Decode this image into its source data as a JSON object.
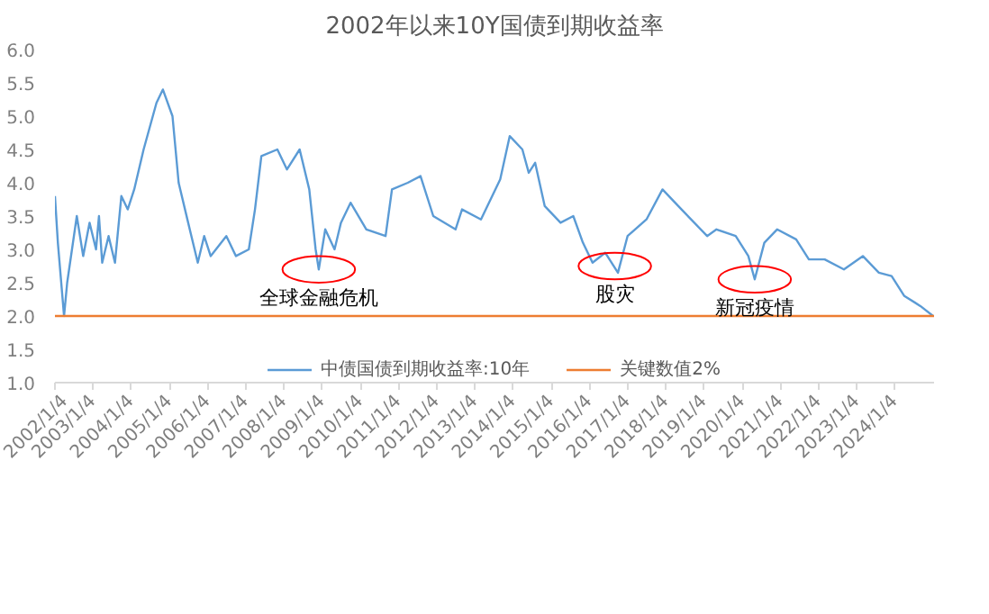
{
  "chart_data": {
    "type": "line",
    "title": "2002年以来10Y国债到期收益率",
    "xlim": [
      "2002-01-04",
      "2025-01-10"
    ],
    "xticks": [
      {
        "value": "2002-01-04",
        "label": "2002/1/4"
      },
      {
        "value": "2003-01-04",
        "label": "2003/1/4"
      },
      {
        "value": "2004-01-04",
        "label": "2004/1/4"
      },
      {
        "value": "2005-01-04",
        "label": "2005/1/4"
      },
      {
        "value": "2006-01-04",
        "label": "2006/1/4"
      },
      {
        "value": "2007-01-04",
        "label": "2007/1/4"
      },
      {
        "value": "2008-01-04",
        "label": "2008/1/4"
      },
      {
        "value": "2009-01-04",
        "label": "2009/1/4"
      },
      {
        "value": "2010-01-04",
        "label": "2010/1/4"
      },
      {
        "value": "2011-01-04",
        "label": "2011/1/4"
      },
      {
        "value": "2012-01-04",
        "label": "2012/1/4"
      },
      {
        "value": "2013-01-04",
        "label": "2013/1/4"
      },
      {
        "value": "2014-01-04",
        "label": "2014/1/4"
      },
      {
        "value": "2015-01-04",
        "label": "2015/1/4"
      },
      {
        "value": "2016-01-04",
        "label": "2016/1/4"
      },
      {
        "value": "2017-01-04",
        "label": "2017/1/4"
      },
      {
        "value": "2018-01-04",
        "label": "2018/1/4"
      },
      {
        "value": "2019-01-04",
        "label": "2019/1/4"
      },
      {
        "value": "2020-01-04",
        "label": "2020/1/4"
      },
      {
        "value": "2021-01-04",
        "label": "2021/1/4"
      },
      {
        "value": "2022-01-04",
        "label": "2022/1/4"
      },
      {
        "value": "2023-01-04",
        "label": "2023/1/4"
      },
      {
        "value": "2024-01-04",
        "label": "2024/1/4"
      }
    ],
    "ylim": [
      1,
      6
    ],
    "yticks": [
      {
        "value": 1,
        "label": "1.0"
      },
      {
        "value": 1.5,
        "label": "1.5"
      },
      {
        "value": 2,
        "label": "2.0"
      },
      {
        "value": 2.5,
        "label": "2.5"
      },
      {
        "value": 3,
        "label": "3.0"
      },
      {
        "value": 3.5,
        "label": "3.5"
      },
      {
        "value": 4,
        "label": "4.0"
      },
      {
        "value": 4.5,
        "label": "4.5"
      },
      {
        "value": 5,
        "label": "5.0"
      },
      {
        "value": 5.5,
        "label": "5.5"
      },
      {
        "value": 6,
        "label": "6.0"
      }
    ],
    "grid": false,
    "legend": "bottom",
    "marker": "none",
    "line_style": "solid",
    "series": [
      {
        "name": "中债国债到期收益率:10年",
        "color": "#5b9bd5",
        "x": [
          "2002-01-04",
          "2002-02",
          "2002-04",
          "2002-05",
          "2002-08",
          "2002-10",
          "2002-12",
          "2003-02",
          "2003-03",
          "2003-04",
          "2003-06",
          "2003-08",
          "2003-10",
          "2003-12",
          "2004-02",
          "2004-05",
          "2004-09",
          "2004-11",
          "2005-02",
          "2005-04",
          "2005-07",
          "2005-10",
          "2005-12",
          "2006-02",
          "2006-07",
          "2006-10",
          "2007-02",
          "2007-04",
          "2007-06",
          "2007-11",
          "2008-02",
          "2008-06",
          "2008-09",
          "2008-11",
          "2008-12",
          "2009-02",
          "2009-05",
          "2009-07",
          "2009-10",
          "2010-03",
          "2010-09",
          "2010-11",
          "2011-04",
          "2011-08",
          "2011-12",
          "2012-07",
          "2012-09",
          "2013-03",
          "2013-09",
          "2013-12",
          "2014-04",
          "2014-06",
          "2014-08",
          "2014-11",
          "2015-04",
          "2015-08",
          "2015-11",
          "2016-02",
          "2016-06",
          "2016-10",
          "2017-01",
          "2017-07",
          "2017-12",
          "2018-06",
          "2019-02",
          "2019-05",
          "2019-11",
          "2020-03",
          "2020-05",
          "2020-08",
          "2020-12",
          "2021-06",
          "2021-10",
          "2022-03",
          "2022-09",
          "2023-03",
          "2023-08",
          "2023-12",
          "2024-04",
          "2024-09",
          "2025-01"
        ],
        "values": [
          3.8,
          3.1,
          2.0,
          2.5,
          3.5,
          2.9,
          3.4,
          3.0,
          3.5,
          2.8,
          3.2,
          2.8,
          3.8,
          3.6,
          3.9,
          4.5,
          5.2,
          5.4,
          5.0,
          4.0,
          3.4,
          2.8,
          3.2,
          2.9,
          3.2,
          2.9,
          3.0,
          3.6,
          4.4,
          4.5,
          4.2,
          4.5,
          3.9,
          3.0,
          2.7,
          3.3,
          3.0,
          3.4,
          3.7,
          3.3,
          3.2,
          3.9,
          4.0,
          4.1,
          3.5,
          3.3,
          3.6,
          3.45,
          4.05,
          4.7,
          4.5,
          4.15,
          4.3,
          3.65,
          3.4,
          3.5,
          3.1,
          2.8,
          2.95,
          2.65,
          3.2,
          3.45,
          3.9,
          3.6,
          3.2,
          3.3,
          3.2,
          2.9,
          2.55,
          3.1,
          3.3,
          3.15,
          2.85,
          2.85,
          2.7,
          2.9,
          2.65,
          2.6,
          2.3,
          2.15,
          2.0
        ]
      },
      {
        "name": "关键数值2%",
        "color": "#ed7d31",
        "x": [
          "2002-01-04",
          "2025-01-10"
        ],
        "values": [
          2,
          2
        ]
      }
    ],
    "annotations": [
      {
        "text": "全球金融危机",
        "x": "2008-12",
        "y": 2.7
      },
      {
        "text": "股灾",
        "x": "2016-09",
        "y": 2.75
      },
      {
        "text": "新冠疫情",
        "x": "2020-05",
        "y": 2.55
      }
    ]
  }
}
